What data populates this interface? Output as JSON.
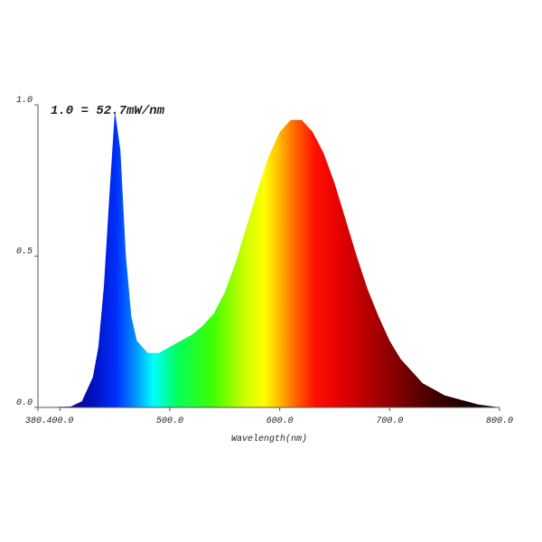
{
  "chart_data": {
    "type": "area",
    "annotation": "1.0 = 52.7mW/nm",
    "x_label": "Wavelength(nm)",
    "x": [
      380,
      410,
      420,
      430,
      435,
      440,
      445,
      450,
      455,
      460,
      465,
      470,
      480,
      490,
      500,
      510,
      520,
      530,
      540,
      550,
      560,
      570,
      580,
      590,
      600,
      610,
      620,
      630,
      640,
      650,
      660,
      670,
      680,
      690,
      700,
      710,
      720,
      730,
      740,
      750,
      760,
      770,
      780,
      790,
      800
    ],
    "values": [
      0,
      0.003,
      0.02,
      0.1,
      0.2,
      0.4,
      0.7,
      0.98,
      0.85,
      0.5,
      0.3,
      0.22,
      0.18,
      0.18,
      0.2,
      0.22,
      0.24,
      0.27,
      0.31,
      0.38,
      0.48,
      0.6,
      0.72,
      0.83,
      0.91,
      0.95,
      0.95,
      0.91,
      0.84,
      0.74,
      0.62,
      0.5,
      0.39,
      0.3,
      0.22,
      0.16,
      0.12,
      0.08,
      0.06,
      0.04,
      0.03,
      0.02,
      0.01,
      0.005,
      0
    ],
    "xlim": [
      380,
      800
    ],
    "ylim": [
      0,
      1
    ],
    "xticks": [
      {
        "value": 380,
        "label": "380."
      },
      {
        "value": 400,
        "label": "400.0"
      },
      {
        "value": 500,
        "label": "500.0"
      },
      {
        "value": 600,
        "label": "600.0"
      },
      {
        "value": 700,
        "label": "700.0"
      },
      {
        "value": 800,
        "label": "800.0"
      }
    ],
    "yticks": [
      {
        "value": 0,
        "label": "0.0"
      },
      0.5,
      {
        "value": 1,
        "label": "1.0"
      }
    ]
  }
}
